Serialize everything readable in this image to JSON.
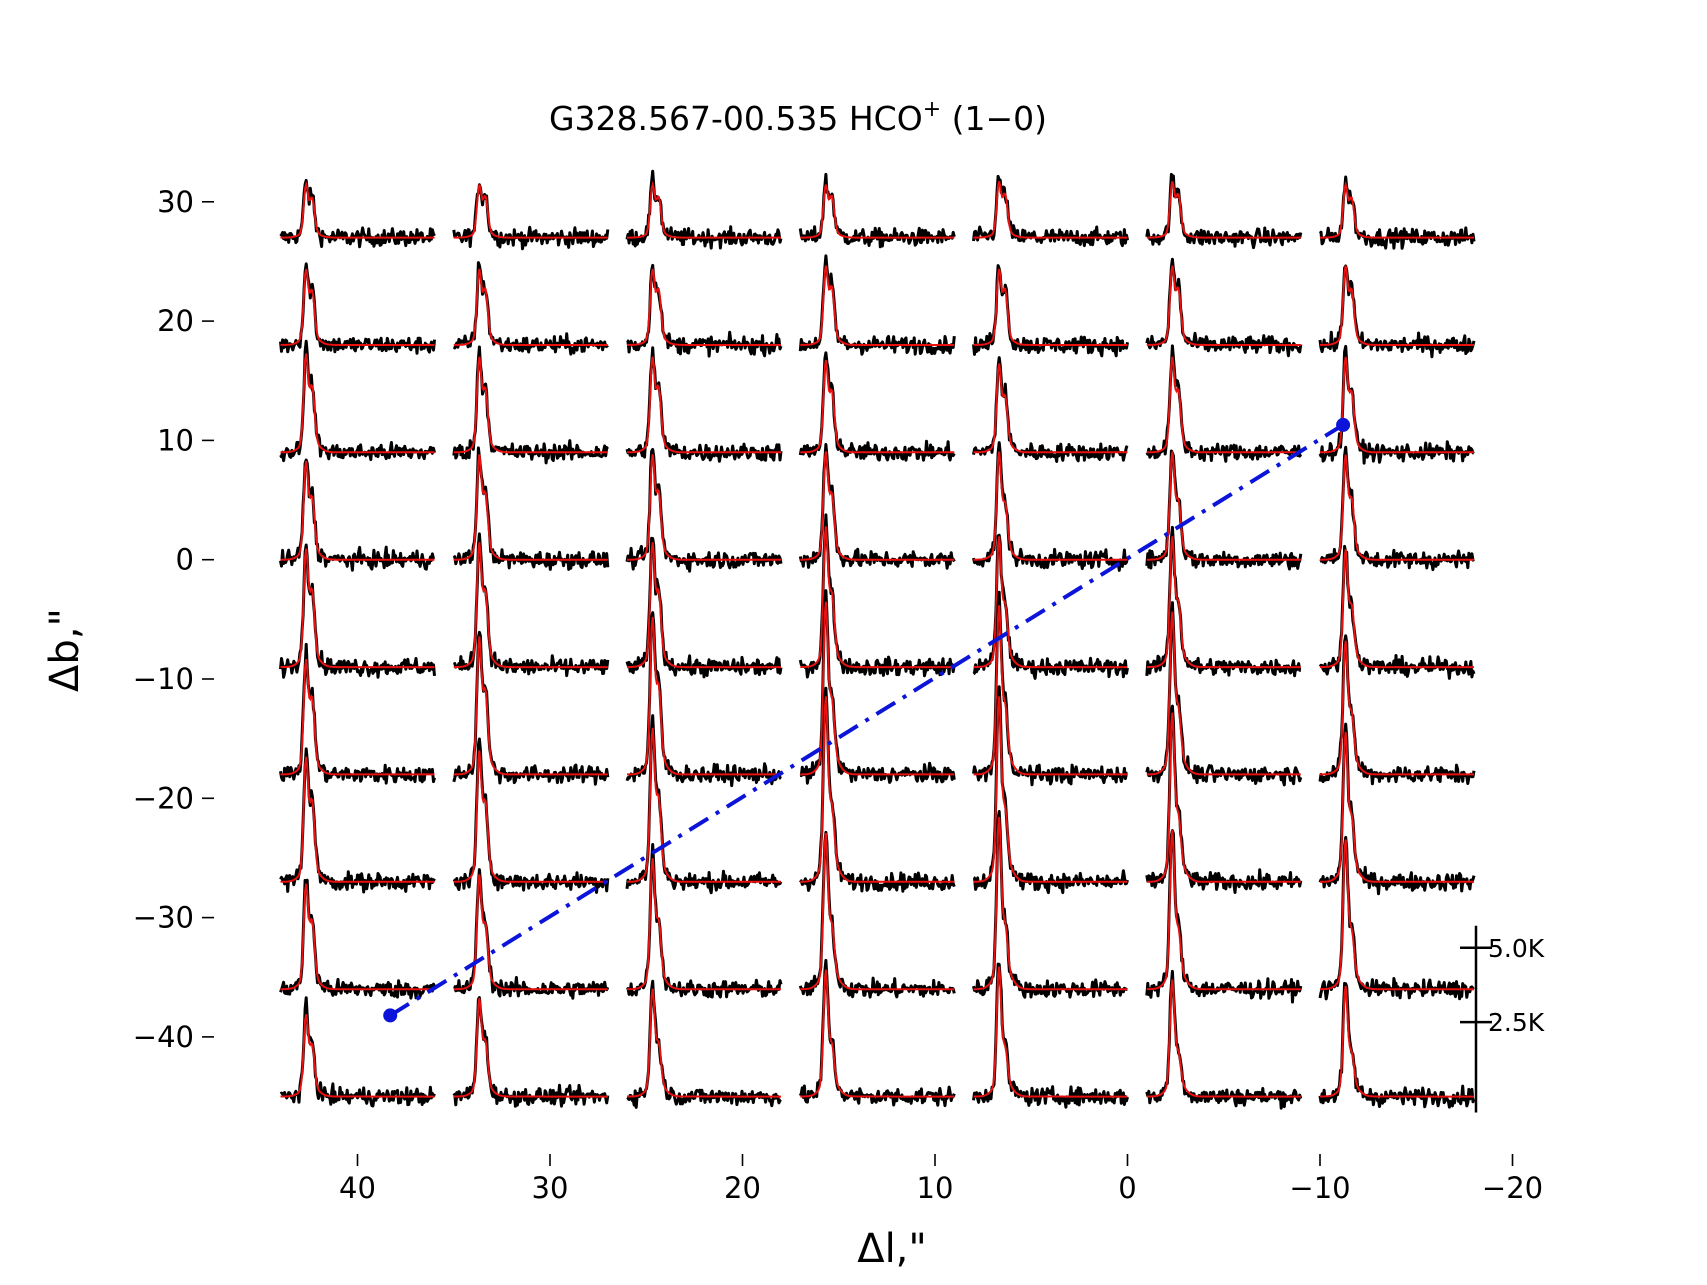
{
  "chart_data": {
    "type": "line",
    "title_main": "G328.567-00.535 HCO",
    "title_sup": "+",
    "title_tail": " (1−0)",
    "xlabel": "Δl,\"",
    "ylabel": "Δb,\"",
    "xlim": [
      44,
      -20
    ],
    "ylim": [
      -46,
      33
    ],
    "x_ticks": [
      40,
      30,
      20,
      10,
      0,
      -10,
      -20
    ],
    "x_tick_labels": [
      "40",
      "30",
      "20",
      "10",
      "0",
      "−10",
      "−20"
    ],
    "y_ticks": [
      30,
      20,
      10,
      0,
      -10,
      -20,
      -30,
      -40
    ],
    "y_tick_labels": [
      "30",
      "20",
      "10",
      "0",
      "−10",
      "−20",
      "−30",
      "−40"
    ],
    "grid_l_offsets": [
      40,
      31,
      22,
      13,
      4,
      -5,
      -14
    ],
    "grid_b_offsets": [
      27,
      18,
      9,
      0,
      -9,
      -18,
      -27,
      -36,
      -45
    ],
    "panel_width_arcsec": 8,
    "series": [
      {
        "name": "observed HCO+ (1-0) spectra",
        "color": "#000000"
      },
      {
        "name": "model fit",
        "color": "#e8110f"
      }
    ],
    "spectra_peak_K": [
      [
        1.6,
        1.6,
        1.6,
        1.6,
        1.7,
        1.7,
        1.6
      ],
      [
        2.3,
        2.3,
        2.3,
        2.4,
        2.3,
        2.4,
        2.4
      ],
      [
        3.0,
        2.9,
        2.9,
        2.8,
        2.7,
        2.9,
        2.9
      ],
      [
        3.0,
        3.2,
        3.2,
        3.3,
        3.3,
        3.3,
        3.2
      ],
      [
        3.6,
        3.8,
        3.8,
        4.3,
        4.0,
        4.0,
        3.6
      ],
      [
        3.5,
        4.2,
        4.8,
        5.3,
        5.2,
        5.0,
        4.1
      ],
      [
        3.8,
        4.0,
        4.7,
        5.7,
        5.7,
        5.2,
        4.6
      ],
      [
        3.2,
        3.5,
        4.0,
        4.8,
        5.3,
        4.9,
        4.6
      ],
      [
        2.5,
        3.0,
        3.3,
        3.9,
        4.0,
        3.6,
        3.4
      ]
    ],
    "dip_fraction": [
      [
        0.72,
        0.75,
        0.74,
        0.76,
        0.75,
        0.74,
        0.72
      ],
      [
        0.68,
        0.7,
        0.7,
        0.7,
        0.7,
        0.68,
        0.66
      ],
      [
        0.62,
        0.62,
        0.64,
        0.62,
        0.58,
        0.6,
        0.58
      ],
      [
        0.58,
        0.58,
        0.6,
        0.55,
        0.45,
        0.48,
        0.52
      ],
      [
        0.6,
        0.55,
        0.55,
        0.45,
        0.4,
        0.42,
        0.45
      ],
      [
        0.62,
        0.55,
        0.5,
        0.35,
        0.32,
        0.32,
        0.38
      ],
      [
        0.6,
        0.55,
        0.48,
        0.32,
        0.3,
        0.3,
        0.35
      ],
      [
        0.6,
        0.5,
        0.45,
        0.32,
        0.28,
        0.28,
        0.3
      ],
      [
        0.58,
        0.5,
        0.42,
        0.32,
        0.28,
        0.28,
        0.3
      ]
    ],
    "cut_line": {
      "color": "#0b14d8",
      "style": "dash-dot",
      "start": [
        38.3,
        -38.2
      ],
      "end": [
        -11.2,
        11.3
      ]
    },
    "temperature_scale": {
      "labels": [
        "5.0K",
        "2.5K"
      ],
      "values_K": [
        5.0,
        2.5
      ]
    }
  }
}
